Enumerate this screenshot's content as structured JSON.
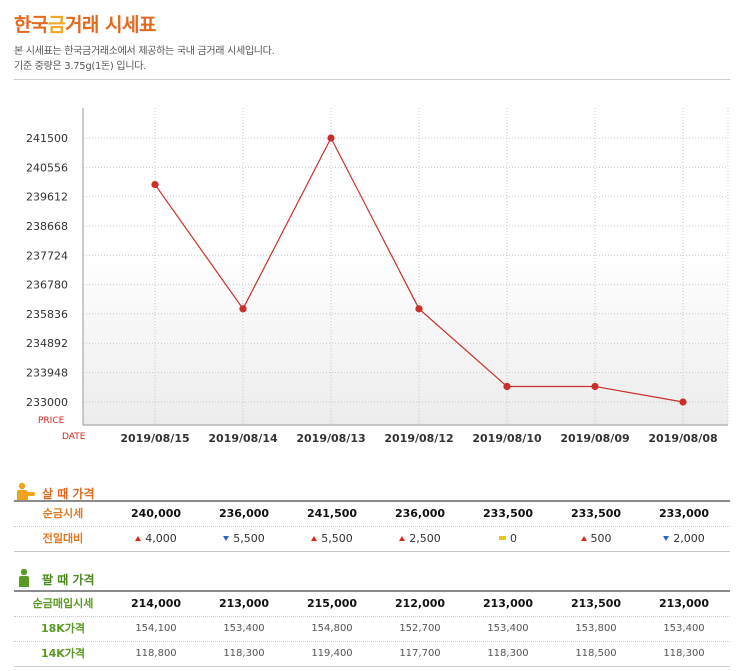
{
  "header": {
    "title_pre": "한국",
    "title_mid": "금",
    "title_post": "거래 시세표",
    "subtitle1": "본 시세표는 한국금거래소에서 제공하는 국내 금거래 시세입니다.",
    "subtitle2": "기준 중량은 3.75g(1돈) 입니다."
  },
  "chart_data": {
    "type": "line",
    "categories": [
      "2019/08/15",
      "2019/08/14",
      "2019/08/13",
      "2019/08/12",
      "2019/08/10",
      "2019/08/09",
      "2019/08/08"
    ],
    "series": [
      {
        "values": [
          240000,
          236000,
          241500,
          236000,
          233500,
          233500,
          233000
        ]
      }
    ],
    "y_ticks": [
      241500,
      240556,
      239612,
      238668,
      237724,
      236780,
      235836,
      234892,
      233948,
      233000
    ],
    "ylim": [
      233000,
      241500
    ],
    "ylabel": "PRICE",
    "xlabel": "DATE",
    "grid": true,
    "line_color": "#c9302c"
  },
  "buy": {
    "heading": "살 때 가격",
    "rows": [
      {
        "label": "순금시세",
        "values": [
          "240,000",
          "236,000",
          "241,500",
          "236,000",
          "233,500",
          "233,500",
          "233,000"
        ]
      },
      {
        "label": "전일대비",
        "changes": [
          {
            "dir": "up",
            "value": "4,000"
          },
          {
            "dir": "down",
            "value": "5,500"
          },
          {
            "dir": "up",
            "value": "5,500"
          },
          {
            "dir": "up",
            "value": "2,500"
          },
          {
            "dir": "flat",
            "value": "0"
          },
          {
            "dir": "up",
            "value": "500"
          },
          {
            "dir": "down",
            "value": "2,000"
          }
        ]
      }
    ]
  },
  "sell": {
    "heading": "팔 때 가격",
    "rows": [
      {
        "label": "순금매입시세",
        "values": [
          "214,000",
          "213,000",
          "215,000",
          "212,000",
          "213,000",
          "213,500",
          "213,000"
        ]
      },
      {
        "label": "18K가격",
        "values": [
          "154,100",
          "153,400",
          "154,800",
          "152,700",
          "153,400",
          "153,800",
          "153,400"
        ]
      },
      {
        "label": "14K가격",
        "values": [
          "118,800",
          "118,300",
          "119,400",
          "117,700",
          "118,300",
          "118,500",
          "118,300"
        ]
      }
    ]
  },
  "colors": {
    "up": "#d9281f",
    "down": "#2a62c9",
    "flat": "#e8c51a",
    "buy_accent": "#e26a1f",
    "sell_accent": "#4b8a1b"
  }
}
